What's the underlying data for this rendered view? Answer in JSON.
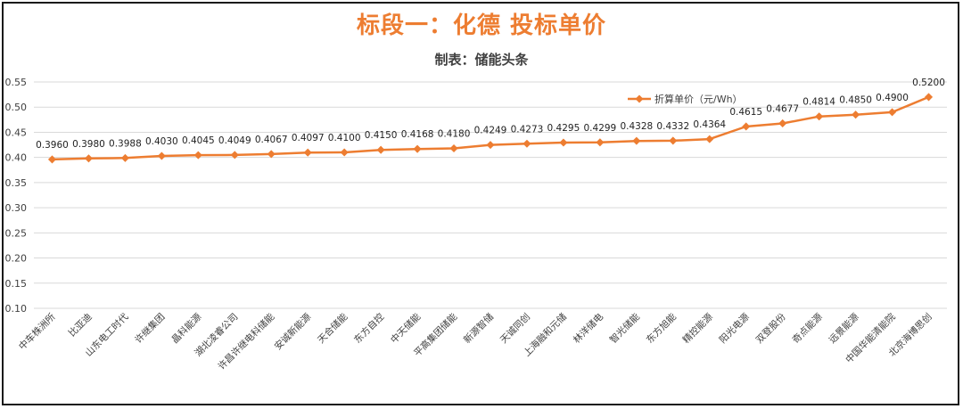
{
  "title": "标段一：化德 投标单价",
  "subtitle": "制表：储能头条",
  "colors": {
    "series": "#ED7D31",
    "grid": "#D9D9D9",
    "text": "#404040",
    "title": "#ED7D31"
  },
  "chart_data": {
    "type": "line",
    "title": "标段一：化德 投标单价",
    "subtitle": "制表：储能头条",
    "xlabel": "",
    "ylabel": "",
    "ylim": [
      0.1,
      0.55
    ],
    "yticks": [
      "0.55",
      "0.50",
      "0.45",
      "0.40",
      "0.35",
      "0.30",
      "0.25",
      "0.20",
      "0.15",
      "0.10"
    ],
    "ytick_values": [
      0.55,
      0.5,
      0.45,
      0.4,
      0.35,
      0.3,
      0.25,
      0.2,
      0.15,
      0.1
    ],
    "grid": true,
    "legend_position": "top-right",
    "categories": [
      "中车株洲所",
      "比亚迪",
      "山东电工时代",
      "许继集团",
      "晶科能源",
      "湖北凌睿公司",
      "许昌许继电科储能",
      "安诚新能源",
      "天合储能",
      "东方自控",
      "中天储能",
      "平高集团储能",
      "新源智储",
      "天诚同创",
      "上海融和元储",
      "林洋储电",
      "智光储能",
      "东方旭能",
      "精控能源",
      "阳光电源",
      "双登股份",
      "奇点能源",
      "远景能源",
      "中国华能清能院",
      "北京海博思创"
    ],
    "series": [
      {
        "name": "折算单价（元/Wh）",
        "values": [
          0.396,
          0.398,
          0.3988,
          0.403,
          0.4045,
          0.4049,
          0.4067,
          0.4097,
          0.41,
          0.415,
          0.4168,
          0.418,
          0.4249,
          0.4273,
          0.4295,
          0.4299,
          0.4328,
          0.4332,
          0.4364,
          0.4615,
          0.4677,
          0.4814,
          0.485,
          0.49,
          0.52
        ],
        "labels": [
          "0.3960",
          "0.3980",
          "0.3988",
          "0.4030",
          "0.4045",
          "0.4049",
          "0.4067",
          "0.4097",
          "0.4100",
          "0.4150",
          "0.4168",
          "0.4180",
          "0.4249",
          "0.4273",
          "0.4295",
          "0.4299",
          "0.4328",
          "0.4332",
          "0.4364",
          "0.4615",
          "0.4677",
          "0.4814",
          "0.4850",
          "0.4900",
          "0.5200"
        ]
      }
    ]
  }
}
